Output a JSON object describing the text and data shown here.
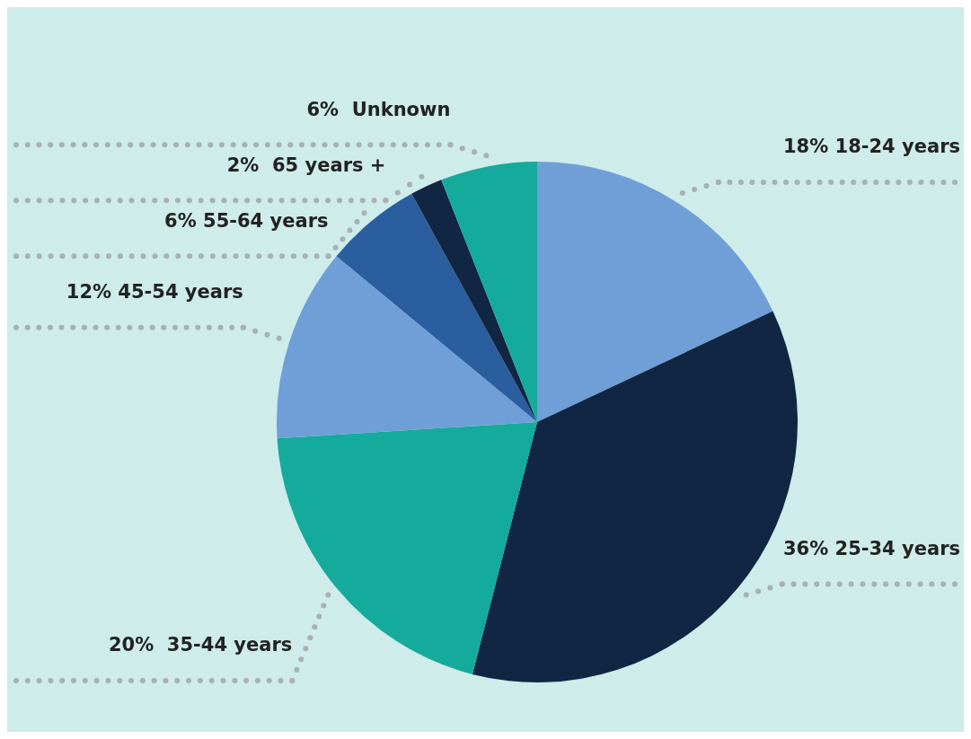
{
  "chart_data": {
    "type": "pie",
    "categories": [
      "18% 18-24 years",
      "36% 25-34 years",
      "20%  35-44 years",
      "12% 45-54 years",
      "6% 55-64 years",
      "2%  65 years +",
      "6%  Unknown"
    ],
    "values": [
      18,
      36,
      20,
      12,
      6,
      2,
      6
    ],
    "colors": [
      "#6f9fd6",
      "#112642",
      "#14ab9c",
      "#6f9fd6",
      "#2a5e9e",
      "#112642",
      "#14ab9c"
    ]
  }
}
